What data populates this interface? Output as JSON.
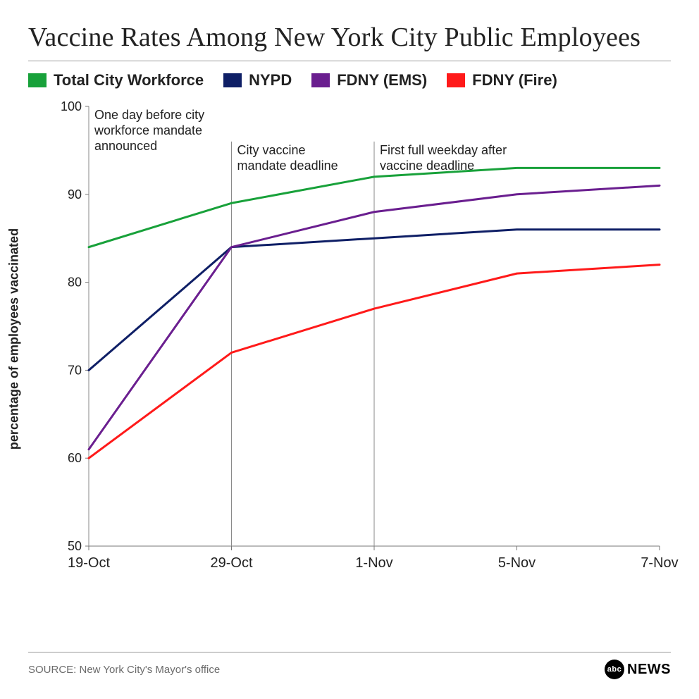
{
  "title": "Vaccine Rates Among New York City Public Employees",
  "ylabel": "percentage of employees vaccinated",
  "source": "SOURCE: New York City's Mayor's office",
  "logo": {
    "circle": "abc",
    "text": "NEWS"
  },
  "legend": [
    {
      "label": "Total City Workforce",
      "color": "#18a13a"
    },
    {
      "label": "NYPD",
      "color": "#0f1f66"
    },
    {
      "label": "FDNY (EMS)",
      "color": "#6a1e8f"
    },
    {
      "label": "FDNY (Fire)",
      "color": "#ff1a1a"
    }
  ],
  "chart": {
    "type": "line",
    "background_color": "#ffffff",
    "xlim": [
      0,
      4
    ],
    "ylim": [
      50,
      100
    ],
    "ytick_step": 10,
    "xlabels": [
      "19-Oct",
      "29-Oct",
      "1-Nov",
      "5-Nov",
      "7-Nov"
    ],
    "line_width": 3,
    "axis_color": "#777777",
    "annotations": [
      {
        "x": 0,
        "text1": "One day before city",
        "text2": "workforce mandate",
        "text3": "announced",
        "label_y_top": 100
      },
      {
        "x": 1,
        "text1": "City vaccine",
        "text2": "mandate deadline",
        "text3": "",
        "label_y_top": 96
      },
      {
        "x": 2,
        "text1": "First full weekday after",
        "text2": "vaccine deadline",
        "text3": "",
        "label_y_top": 96
      }
    ],
    "series": [
      {
        "key": "total",
        "color": "#18a13a",
        "values": [
          84,
          89,
          92,
          93,
          93
        ]
      },
      {
        "key": "nypd",
        "color": "#0f1f66",
        "values": [
          70,
          84,
          85,
          86,
          86
        ]
      },
      {
        "key": "ems",
        "color": "#6a1e8f",
        "values": [
          61,
          84,
          88,
          90,
          91
        ]
      },
      {
        "key": "fire",
        "color": "#ff1a1a",
        "values": [
          60,
          72,
          77,
          81,
          82
        ]
      }
    ]
  }
}
